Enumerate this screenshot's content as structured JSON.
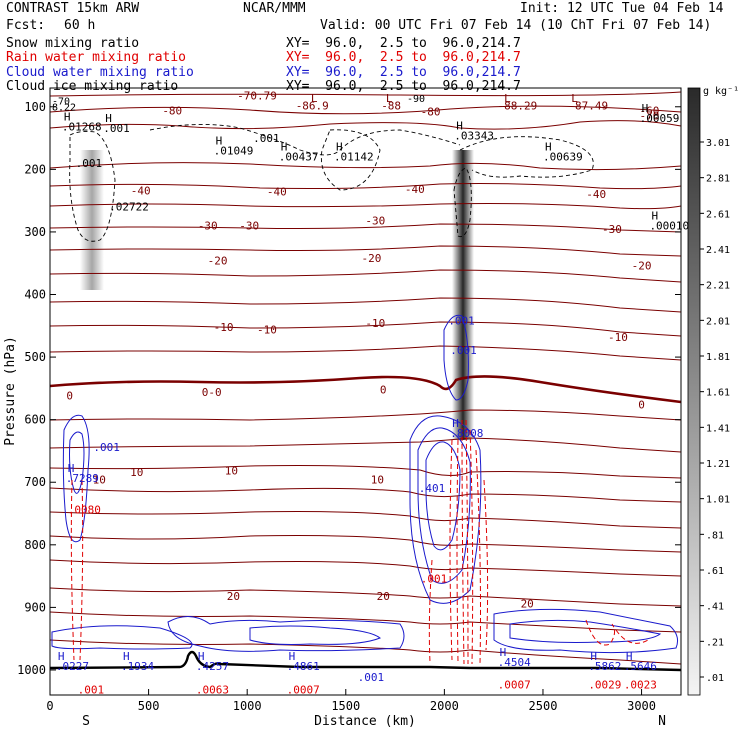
{
  "header": {
    "model": "CONTRAST 15km ARW",
    "org": "NCAR/MMM",
    "init": "Init: 12 UTC Tue 04 Feb 14",
    "fcst_label": "Fcst:",
    "fcst_value": "60 h",
    "valid": "Valid: 00 UTC Fri 07 Feb 14 (10 ChT Fri 07 Feb 14)",
    "fields": [
      {
        "name": "Snow mixing ratio",
        "xy": "XY=  96.0,  2.5 to  96.0,214.7",
        "color": "#000000"
      },
      {
        "name": "Rain water mixing ratio",
        "xy": "XY=  96.0,  2.5 to  96.0,214.7",
        "color": "#e00000"
      },
      {
        "name": "Cloud water mixing ratio",
        "xy": "XY=  96.0,  2.5 to  96.0,214.7",
        "color": "#1a1acc"
      },
      {
        "name": "Cloud ice mixing ratio",
        "xy": "XY=  96.0,  2.5 to  96.0,214.7",
        "color": "#000000"
      }
    ]
  },
  "colors": {
    "temperature": "#7a0000",
    "zero_isotherm": "#7a0000",
    "rain": "#e00000",
    "cloud_water": "#1a1acc",
    "ice": "#000000",
    "terrain": "#000000"
  },
  "chart_data": {
    "type": "cross-section",
    "xlabel": "Distance (km)",
    "ylabel": "Pressure (hPa)",
    "xlim": [
      0,
      3200
    ],
    "ylim": [
      1040,
      70
    ],
    "x_ticks": [
      "0",
      "500",
      "1000",
      "1500",
      "2000",
      "2500",
      "3000"
    ],
    "y_ticks": [
      "100",
      "200",
      "300",
      "400",
      "500",
      "600",
      "700",
      "800",
      "900",
      "1000"
    ],
    "end_labels": {
      "left": "S",
      "right": "N"
    },
    "colorbar": {
      "unit": "g kg⁻¹",
      "ticks": [
        "3.01",
        "2.81",
        "2.61",
        "2.41",
        "2.21",
        "2.01",
        "1.81",
        "1.61",
        "1.41",
        "1.21",
        "1.01",
        ".81",
        ".61",
        ".41",
        ".21",
        ".01"
      ]
    },
    "temperature_levels": [
      {
        "label": "-70.79",
        "x": 1050,
        "p": 88
      },
      {
        "label": "-80",
        "x": 620,
        "p": 112
      },
      {
        "label": "-86.9",
        "x": 1330,
        "p": 104
      },
      {
        "label": "-88",
        "x": 1730,
        "p": 104
      },
      {
        "label": "-80",
        "x": 1930,
        "p": 114
      },
      {
        "label": "-88.29",
        "x": 2370,
        "p": 104
      },
      {
        "label": "-87.49",
        "x": 2730,
        "p": 104
      },
      {
        "label": "-60",
        "x": 3040,
        "p": 112
      },
      {
        "label": "-70",
        "x": 3040,
        "p": 120
      },
      {
        "label": "-40",
        "x": 460,
        "p": 240
      },
      {
        "label": "-40",
        "x": 1150,
        "p": 242
      },
      {
        "label": "-40",
        "x": 1850,
        "p": 238
      },
      {
        "label": "-40",
        "x": 2770,
        "p": 246
      },
      {
        "label": "-30",
        "x": 800,
        "p": 296
      },
      {
        "label": "-30",
        "x": 1010,
        "p": 296
      },
      {
        "label": "-30",
        "x": 1650,
        "p": 288
      },
      {
        "label": "-30",
        "x": 2850,
        "p": 302
      },
      {
        "label": "-20",
        "x": 850,
        "p": 352
      },
      {
        "label": "-20",
        "x": 1630,
        "p": 348
      },
      {
        "label": "-20",
        "x": 3000,
        "p": 360
      },
      {
        "label": "-10",
        "x": 880,
        "p": 458
      },
      {
        "label": "-10",
        "x": 1100,
        "p": 462
      },
      {
        "label": "-10",
        "x": 1650,
        "p": 452
      },
      {
        "label": "-10",
        "x": 2880,
        "p": 474
      },
      {
        "label": "0",
        "x": 100,
        "p": 568
      },
      {
        "label": "0-0",
        "x": 820,
        "p": 562
      },
      {
        "label": "0",
        "x": 1690,
        "p": 558
      },
      {
        "label": "0",
        "x": 3000,
        "p": 582
      },
      {
        "label": "10",
        "x": 250,
        "p": 702
      },
      {
        "label": "10",
        "x": 440,
        "p": 690
      },
      {
        "label": "10",
        "x": 920,
        "p": 688
      },
      {
        "label": "10",
        "x": 1660,
        "p": 702
      },
      {
        "label": "20",
        "x": 930,
        "p": 888
      },
      {
        "label": "20",
        "x": 1690,
        "p": 888
      },
      {
        "label": "20",
        "x": 2420,
        "p": 900
      }
    ],
    "extrema": [
      {
        "label": "H",
        "value": ".01268",
        "x": 60,
        "p": 138,
        "color": "ice"
      },
      {
        "label": "H",
        "value": ".001",
        "x": 270,
        "p": 140,
        "color": "ice"
      },
      {
        "label": "H",
        "value": ".01049",
        "x": 830,
        "p": 176,
        "color": "ice"
      },
      {
        "label": "H",
        "value": ".00437",
        "x": 1160,
        "p": 186,
        "color": "ice"
      },
      {
        "label": "H",
        "value": ".01142",
        "x": 1440,
        "p": 186,
        "color": "ice"
      },
      {
        "label": "H",
        "value": ".03343",
        "x": 2050,
        "p": 152,
        "color": "ice"
      },
      {
        "label": "H",
        "value": ".00639",
        "x": 2500,
        "p": 186,
        "color": "ice"
      },
      {
        "label": "H",
        "value": ".00059",
        "x": 2990,
        "p": 124,
        "color": "ice"
      },
      {
        "label": "H",
        "value": ".00010",
        "x": 3040,
        "p": 296,
        "color": "ice"
      },
      {
        "label": "",
        "value": ".02722",
        "x": 300,
        "p": 266,
        "color": "ice"
      },
      {
        "label": "",
        "value": ".001",
        "x": 130,
        "p": 196,
        "color": "ice"
      },
      {
        "label": "",
        "value": ".001",
        "x": 1030,
        "p": 156,
        "color": "ice"
      },
      {
        "label": "H",
        "value": ".7289",
        "x": 80,
        "p": 700,
        "color": "cloud_water"
      },
      {
        "label": "",
        "value": ".001",
        "x": 220,
        "p": 650,
        "color": "cloud_water"
      },
      {
        "label": "",
        "value": ".0080",
        "x": 90,
        "p": 750,
        "color": "rain"
      },
      {
        "label": "H",
        "value": ".8008",
        "x": 2030,
        "p": 628,
        "color": "cloud_water"
      },
      {
        "label": "",
        "value": ".001",
        "x": 2020,
        "p": 448,
        "color": "cloud_water"
      },
      {
        "label": "",
        "value": ".001",
        "x": 2030,
        "p": 495,
        "color": "cloud_water"
      },
      {
        "label": "",
        "value": ".401",
        "x": 1870,
        "p": 716,
        "color": "cloud_water"
      },
      {
        "label": "",
        "value": ".001",
        "x": 1880,
        "p": 860,
        "color": "rain"
      },
      {
        "label": "H",
        "value": ".0227",
        "x": 30,
        "p": 1000,
        "color": "cloud_water"
      },
      {
        "label": "",
        "value": ".001",
        "x": 140,
        "p": 1038,
        "color": "rain"
      },
      {
        "label": "H",
        "value": ".1934",
        "x": 360,
        "p": 1000,
        "color": "cloud_water"
      },
      {
        "label": "H",
        "value": ".4257",
        "x": 740,
        "p": 1000,
        "color": "cloud_water"
      },
      {
        "label": "",
        "value": ".0063",
        "x": 740,
        "p": 1038,
        "color": "rain"
      },
      {
        "label": "H",
        "value": ".4861",
        "x": 1200,
        "p": 1000,
        "color": "cloud_water"
      },
      {
        "label": "",
        "value": ".0007",
        "x": 1200,
        "p": 1038,
        "color": "rain"
      },
      {
        "label": "",
        "value": ".001",
        "x": 1560,
        "p": 1018,
        "color": "cloud_water"
      },
      {
        "label": "H",
        "value": ".4504",
        "x": 2270,
        "p": 994,
        "color": "cloud_water"
      },
      {
        "label": "",
        "value": ".0007",
        "x": 2270,
        "p": 1030,
        "color": "rain"
      },
      {
        "label": "H",
        "value": ".5862",
        "x": 2730,
        "p": 1000,
        "color": "cloud_water"
      },
      {
        "label": "",
        "value": ".0029",
        "x": 2730,
        "p": 1030,
        "color": "rain"
      },
      {
        "label": "H",
        "value": ".5646",
        "x": 2910,
        "p": 1000,
        "color": "cloud_water"
      },
      {
        "label": "",
        "value": ".0023",
        "x": 2910,
        "p": 1030,
        "color": "rain"
      }
    ],
    "lows": [
      {
        "label": "L",
        "x": 1340,
        "p": 92
      },
      {
        "label": "L",
        "x": 1720,
        "p": 92
      },
      {
        "label": "L",
        "x": 2320,
        "p": 92
      },
      {
        "label": "L",
        "x": 2660,
        "p": 92
      }
    ],
    "misc_labels": [
      {
        "text": "-90",
        "x": 1800,
        "p": 92
      },
      {
        "text": "-70",
        "x": 0,
        "p": 96
      },
      {
        "text": "8.22",
        "x": 0,
        "p": 106
      }
    ]
  }
}
